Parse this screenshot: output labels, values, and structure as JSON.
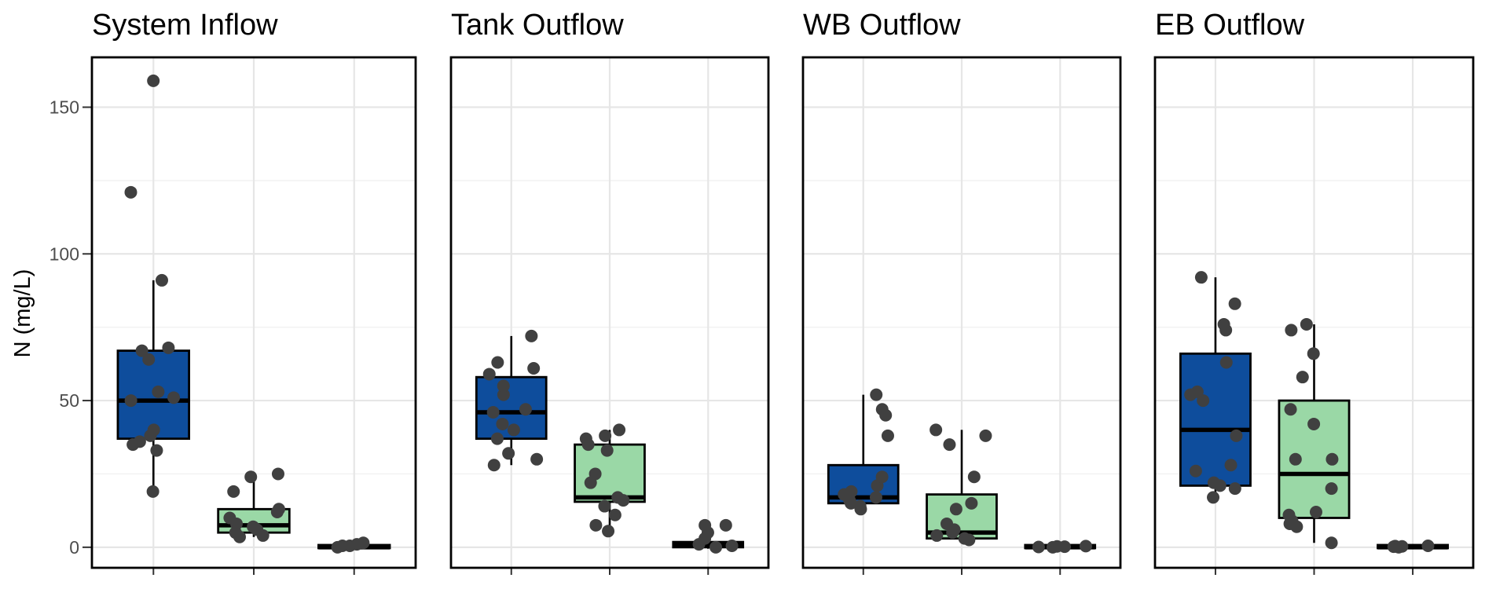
{
  "chart_data": {
    "type": "box",
    "ylabel": "N (mg/L)",
    "xlabel": "",
    "ylim": [
      -7,
      167
    ],
    "yticks": [
      0,
      50,
      100,
      150
    ],
    "grid": true,
    "legend": "none",
    "colors": [
      "#0e4d9c",
      "#9ad8a6",
      "#000000"
    ],
    "panels": [
      {
        "title": "System Inflow",
        "groups": [
          {
            "q1": 37,
            "median": 50,
            "q3": 67,
            "whisker_low": 19,
            "whisker_high": 91,
            "points": [
              19,
              33,
              35,
              36,
              38,
              40,
              50,
              51,
              53,
              64,
              67,
              68,
              91,
              121,
              159
            ]
          },
          {
            "q1": 5,
            "median": 7.5,
            "q3": 13,
            "whisker_low": 3.5,
            "whisker_high": 25,
            "points": [
              3.5,
              4,
              5,
              6,
              7,
              8,
              10,
              12,
              13,
              19,
              24,
              25
            ]
          },
          {
            "q1": -0.3,
            "median": 0,
            "q3": 0.5,
            "whisker_low": -0.5,
            "whisker_high": 1.5,
            "points": [
              0,
              0.5,
              1,
              1.5,
              0.5
            ]
          }
        ]
      },
      {
        "title": "Tank Outflow",
        "groups": [
          {
            "q1": 37,
            "median": 46,
            "q3": 58,
            "whisker_low": 28,
            "whisker_high": 72,
            "points": [
              28,
              30,
              32,
              37,
              40,
              42,
              46,
              47,
              52,
              55,
              59,
              61,
              63,
              72
            ]
          },
          {
            "q1": 15.5,
            "median": 17,
            "q3": 35,
            "whisker_low": 5.5,
            "whisker_high": 40,
            "points": [
              5.5,
              7.5,
              11,
              14,
              16,
              17,
              22,
              25,
              33,
              35,
              37,
              38,
              40
            ]
          },
          {
            "q1": 0,
            "median": 0.8,
            "q3": 1.8,
            "whisker_low": -0.5,
            "whisker_high": 8,
            "points": [
              0,
              0.5,
              1,
              3,
              5,
              7.5,
              7.5
            ]
          }
        ]
      },
      {
        "title": "WB Outflow",
        "groups": [
          {
            "q1": 15,
            "median": 17,
            "q3": 28,
            "whisker_low": 13,
            "whisker_high": 52,
            "points": [
              13,
              14,
              15,
              16,
              17,
              18,
              19,
              21,
              24,
              38,
              45,
              47,
              52
            ]
          },
          {
            "q1": 3,
            "median": 5,
            "q3": 18,
            "whisker_low": 2.5,
            "whisker_high": 40,
            "points": [
              2.5,
              3,
              4,
              5,
              6,
              8,
              13,
              15,
              24,
              35,
              38,
              40
            ]
          },
          {
            "q1": -0.3,
            "median": 0,
            "q3": 0.3,
            "whisker_low": -0.5,
            "whisker_high": 0.5,
            "points": [
              0,
              0.2,
              0.3,
              0.1,
              0.4
            ]
          }
        ]
      },
      {
        "title": "EB Outflow",
        "groups": [
          {
            "q1": 21,
            "median": 40,
            "q3": 66,
            "whisker_low": 17,
            "whisker_high": 92,
            "points": [
              17,
              20,
              21,
              22,
              26,
              28,
              38,
              50,
              52,
              53,
              63,
              74,
              76,
              83,
              92
            ]
          },
          {
            "q1": 10,
            "median": 25,
            "q3": 50,
            "whisker_low": 1.5,
            "whisker_high": 76,
            "points": [
              1.5,
              7,
              8,
              9,
              11,
              12,
              20,
              30,
              30,
              42,
              47,
              58,
              66,
              74,
              76
            ]
          },
          {
            "q1": -0.3,
            "median": 0,
            "q3": 0.3,
            "whisker_low": -0.5,
            "whisker_high": 0.5,
            "points": [
              0,
              0.3,
              0.5,
              0.2,
              0.4
            ]
          }
        ]
      }
    ]
  }
}
